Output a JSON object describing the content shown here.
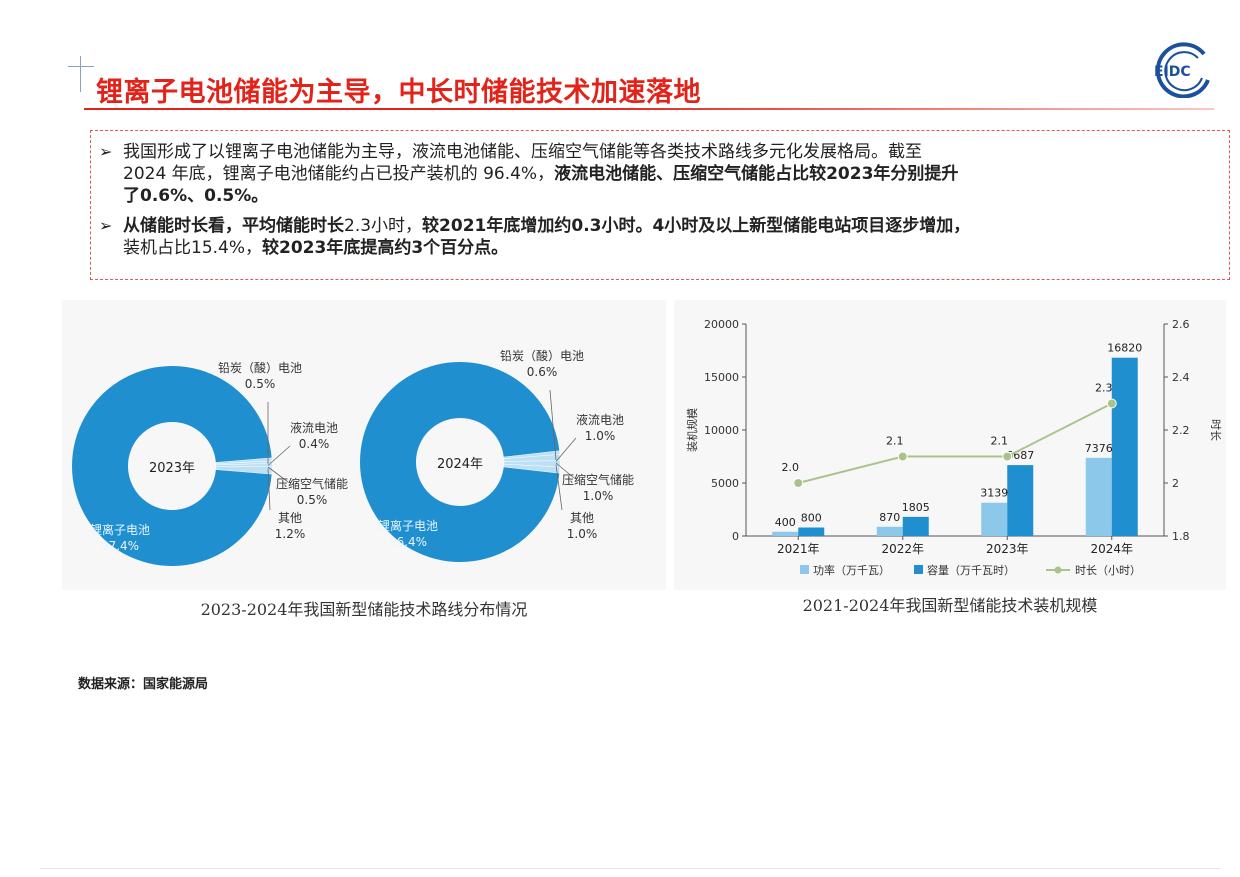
{
  "header": {
    "title": "锂离子电池储能为主导，中长时储能技术加速落地",
    "logo_text": "EIDC"
  },
  "summary": {
    "bullet1": {
      "line1": "我国形成了以锂离子电池储能为主导，液流电池储能、压缩空气储能等各类技术路线多元化发展格局。截至",
      "line2_normal": "2024 年底，锂离子电池储能约占已投产装机的 96.4%，",
      "line2_bold": "液流电池储能、压缩空气储能占比较2023年分别提升",
      "line3_bold": "了0.6%、0.5%。"
    },
    "bullet2": {
      "part1_bold": "从储能时长看，平均储能时长",
      "part2": "2.3小时，",
      "part3_bold": "较2021年底增加约0.3小时。4小时及以上新型储能电站项目逐步增加，",
      "line2_normal": "装机占比15.4%，",
      "line2_bold": "较2023年底提高约3个百分点。"
    }
  },
  "chart_data": [
    {
      "type": "pie",
      "variant": "donut",
      "center_label": "2023年",
      "caption": "2023-2024年我国新型储能技术路线分布情况",
      "slices": [
        {
          "name": "锂离子电池",
          "label": "97.4%",
          "value": 97.4
        },
        {
          "name": "铅炭（酸）电池",
          "label": "0.5%",
          "value": 0.5
        },
        {
          "name": "液流电池",
          "label": "0.4%",
          "value": 0.4
        },
        {
          "name": "压缩空气储能",
          "label": "0.5%",
          "value": 0.5
        },
        {
          "name": "其他",
          "label": "1.2%",
          "value": 1.2
        }
      ],
      "colors": {
        "main": "#1f8fd0",
        "minor": "#bde0f5"
      }
    },
    {
      "type": "pie",
      "variant": "donut",
      "center_label": "2024年",
      "slices": [
        {
          "name": "锂离子电池",
          "label": "96.4%",
          "value": 96.4
        },
        {
          "name": "铅炭（酸）电池",
          "label": "0.6%",
          "value": 0.6
        },
        {
          "name": "液流电池",
          "label": "1.0%",
          "value": 1.0
        },
        {
          "name": "压缩空气储能",
          "label": "1.0%",
          "value": 1.0
        },
        {
          "name": "其他",
          "label": "1.0%",
          "value": 1.0
        }
      ],
      "colors": {
        "main": "#1f8fd0",
        "minor": "#bde0f5"
      }
    },
    {
      "type": "bar",
      "combo": "bar+line",
      "caption": "2021-2024年我国新型储能技术装机规模",
      "categories": [
        "2021年",
        "2022年",
        "2023年",
        "2024年"
      ],
      "series": [
        {
          "name": "功率（万千瓦）",
          "type": "bar",
          "axis": "left",
          "values": [
            400,
            870,
            3139,
            7376
          ],
          "color": "#8cc8ea"
        },
        {
          "name": "容量（万千瓦时）",
          "type": "bar",
          "axis": "left",
          "values": [
            800,
            1805,
            6687,
            16820
          ],
          "color": "#1f8fd0"
        },
        {
          "name": "时长（小时）",
          "type": "line",
          "axis": "right",
          "values": [
            2.0,
            2.1,
            2.1,
            2.3
          ],
          "color": "#a9c38b"
        }
      ],
      "ylabel": "装机规模",
      "y2label": "时长",
      "ylim": [
        0,
        20000
      ],
      "y2lim": [
        1.8,
        2.6
      ],
      "yticks": [
        "0",
        "5000",
        "10000",
        "15000",
        "20000"
      ],
      "y2ticks": [
        "1.8",
        "2",
        "2.2",
        "2.4",
        "2.6"
      ],
      "legend_position": "bottom"
    }
  ],
  "source": "数据来源：国家能源局"
}
